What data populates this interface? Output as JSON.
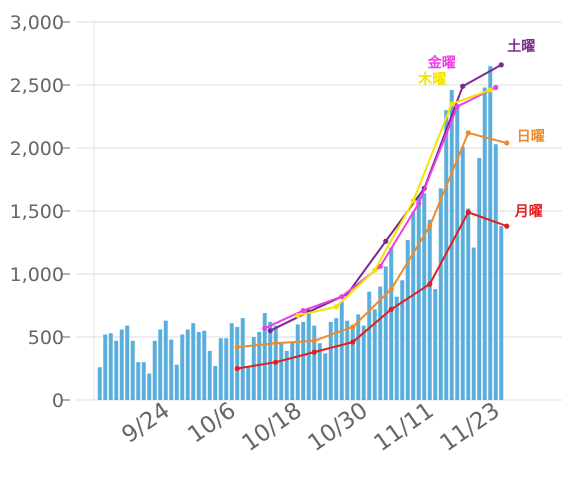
{
  "chart_data": {
    "type": "bar",
    "title": "",
    "xlabel": "",
    "ylabel": "",
    "ylim": [
      0,
      3000
    ],
    "y_ticks": [
      0,
      500,
      1000,
      1500,
      2000,
      2500,
      3000
    ],
    "y_tick_labels": [
      "0",
      "500",
      "1,000",
      "1,500",
      "2,000",
      "2,500",
      "3,000"
    ],
    "x_tick_labels": [
      "9/24",
      "10/6",
      "10/18",
      "10/30",
      "11/11",
      "11/23"
    ],
    "x_tick_positions": [
      9,
      21,
      33,
      45,
      57,
      69
    ],
    "grid": true,
    "bar_color": "#5aaedc",
    "bar_series": {
      "name": "",
      "values": [
        260,
        520,
        530,
        470,
        560,
        590,
        470,
        300,
        300,
        210,
        470,
        560,
        630,
        480,
        280,
        520,
        560,
        610,
        540,
        550,
        390,
        270,
        490,
        490,
        610,
        580,
        650,
        270,
        500,
        540,
        690,
        620,
        590,
        460,
        390,
        460,
        600,
        620,
        700,
        590,
        450,
        370,
        620,
        650,
        780,
        630,
        580,
        680,
        590,
        860,
        720,
        900,
        1060,
        1210,
        820,
        950,
        1270,
        1490,
        1620,
        1640,
        1430,
        880,
        1680,
        2300,
        2460,
        2340,
        2010,
        1520,
        1210,
        1920,
        2480,
        2650,
        2030,
        1380
      ]
    },
    "weekday_series": [
      {
        "name": "土曜",
        "color": "#7b2a8e",
        "points": [
          [
            31,
            550
          ],
          [
            38,
            700
          ],
          [
            45,
            840
          ],
          [
            52,
            1260
          ],
          [
            59,
            1680
          ],
          [
            66,
            2490
          ],
          [
            73,
            2660
          ]
        ]
      },
      {
        "name": "金曜",
        "color": "#ee3ee8",
        "points": [
          [
            30,
            570
          ],
          [
            37,
            710
          ],
          [
            44,
            820
          ],
          [
            51,
            1060
          ],
          [
            58,
            1560
          ],
          [
            65,
            2330
          ],
          [
            72,
            2480
          ]
        ]
      },
      {
        "name": "木曜",
        "color": "#f2e400",
        "points": [
          [
            36,
            670
          ],
          [
            43,
            740
          ],
          [
            50,
            1030
          ],
          [
            57,
            1580
          ],
          [
            64,
            2350
          ],
          [
            71,
            2460
          ]
        ]
      },
      {
        "name": "日曜",
        "color": "#ef8a2a",
        "points": [
          [
            25,
            420
          ],
          [
            32,
            450
          ],
          [
            39,
            470
          ],
          [
            46,
            580
          ],
          [
            53,
            880
          ],
          [
            60,
            1380
          ],
          [
            67,
            2120
          ],
          [
            74,
            2040
          ]
        ]
      },
      {
        "name": "月曜",
        "color": "#e02020",
        "points": [
          [
            25,
            250
          ],
          [
            32,
            300
          ],
          [
            39,
            380
          ],
          [
            46,
            460
          ],
          [
            53,
            720
          ],
          [
            60,
            920
          ],
          [
            67,
            1490
          ],
          [
            74,
            1380
          ]
        ]
      }
    ]
  }
}
